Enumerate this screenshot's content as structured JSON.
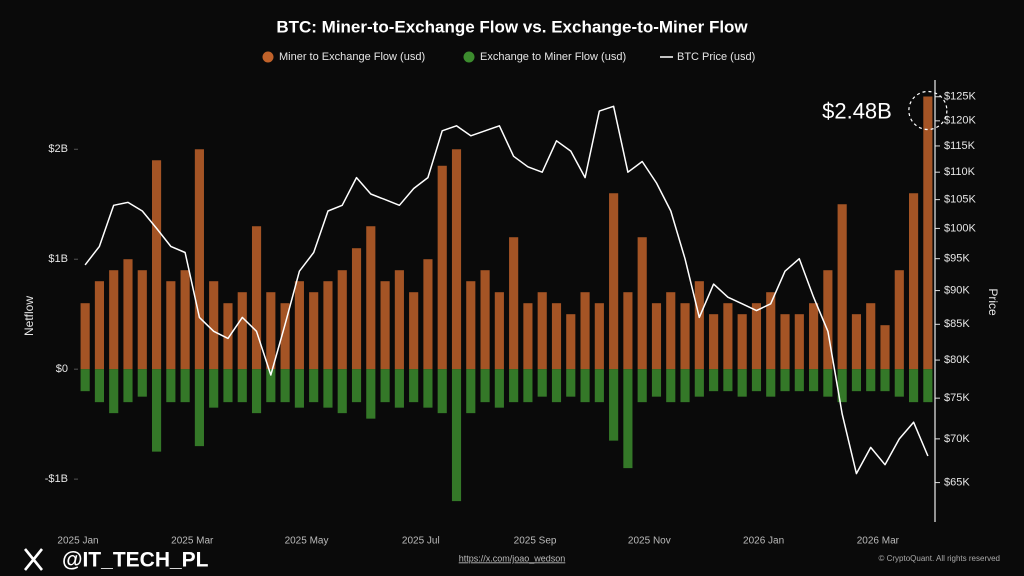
{
  "chart_data": {
    "type": "bar",
    "title": "BTC: Miner-to-Exchange Flow vs. Exchange-to-Miner Flow",
    "ylabel": "Netflow",
    "y2label": "Price",
    "categories": [
      "2025 Jan",
      null,
      null,
      null,
      null,
      null,
      null,
      null,
      "2025 Mar",
      null,
      null,
      null,
      null,
      null,
      null,
      null,
      "2025 May",
      null,
      null,
      null,
      null,
      null,
      null,
      null,
      "2025 Jul",
      null,
      null,
      null,
      null,
      null,
      null,
      null,
      "2025 Sep",
      null,
      null,
      null,
      null,
      null,
      null,
      null,
      "2025 Nov",
      null,
      null,
      null,
      null,
      null,
      null,
      null,
      "2026 Jan",
      null,
      null,
      null,
      null,
      null,
      null,
      null,
      "2026 Mar",
      null,
      null,
      null
    ],
    "series": [
      {
        "name": "Miner to Exchange Flow (usd)",
        "color": "#c0622a",
        "values": [
          0.6,
          0.8,
          0.9,
          1.0,
          0.9,
          1.9,
          0.8,
          0.9,
          2.0,
          0.8,
          0.6,
          0.7,
          1.3,
          0.7,
          0.6,
          0.8,
          0.7,
          0.8,
          0.9,
          1.1,
          1.3,
          0.8,
          0.9,
          0.7,
          1.0,
          1.85,
          2.0,
          0.8,
          0.9,
          0.7,
          1.2,
          0.6,
          0.7,
          0.6,
          0.5,
          0.7,
          0.6,
          1.6,
          0.7,
          1.2,
          0.6,
          0.7,
          0.6,
          0.8,
          0.5,
          0.6,
          0.5,
          0.6,
          0.7,
          0.5,
          0.5,
          0.6,
          0.9,
          1.5,
          0.5,
          0.6,
          0.4,
          0.9,
          1.6,
          2.48
        ],
        "value_labels": [
          null,
          null,
          null,
          null,
          null,
          null,
          null,
          null,
          null,
          null,
          null,
          null,
          null,
          null,
          null,
          null,
          null,
          null,
          null,
          null,
          null,
          null,
          null,
          null,
          null,
          null,
          null,
          null,
          null,
          null,
          null,
          null,
          null,
          null,
          null,
          null,
          null,
          null,
          null,
          null,
          null,
          null,
          null,
          null,
          null,
          null,
          null,
          null,
          null,
          null,
          null,
          null,
          null,
          null,
          null,
          null,
          null,
          null,
          null,
          "$2.48B"
        ]
      },
      {
        "name": "Exchange to Miner Flow (usd)",
        "color": "#3c8c2e",
        "values": [
          -0.2,
          -0.3,
          -0.4,
          -0.3,
          -0.25,
          -0.75,
          -0.3,
          -0.3,
          -0.7,
          -0.35,
          -0.3,
          -0.3,
          -0.4,
          -0.3,
          -0.3,
          -0.35,
          -0.3,
          -0.35,
          -0.4,
          -0.3,
          -0.45,
          -0.3,
          -0.35,
          -0.3,
          -0.35,
          -0.4,
          -1.2,
          -0.4,
          -0.3,
          -0.35,
          -0.3,
          -0.3,
          -0.25,
          -0.3,
          -0.25,
          -0.3,
          -0.3,
          -0.65,
          -0.9,
          -0.3,
          -0.25,
          -0.3,
          -0.3,
          -0.25,
          -0.2,
          -0.2,
          -0.25,
          -0.2,
          -0.25,
          -0.2,
          -0.2,
          -0.2,
          -0.25,
          -0.3,
          -0.2,
          -0.2,
          -0.2,
          -0.25,
          -0.3,
          -0.3
        ]
      },
      {
        "name": "BTC Price (usd)",
        "color": "#ffffff",
        "type": "line",
        "axis": "y2",
        "values": [
          94000,
          97000,
          104000,
          104500,
          103000,
          100000,
          97000,
          96000,
          86000,
          84000,
          83000,
          86000,
          84000,
          78000,
          85000,
          93000,
          96000,
          103000,
          104000,
          109000,
          106000,
          105000,
          104000,
          107000,
          109000,
          118000,
          119000,
          117000,
          118000,
          119000,
          113000,
          111000,
          110000,
          116000,
          114000,
          109000,
          122000,
          123000,
          110000,
          112000,
          108000,
          103000,
          95000,
          86000,
          91000,
          89000,
          88000,
          87000,
          88000,
          93000,
          95000,
          89000,
          84000,
          73000,
          66000,
          69000,
          67000,
          70000,
          72000,
          68000
        ]
      }
    ],
    "ylim": [
      -1.39,
      2.63
    ],
    "yticks": [
      {
        "value": -1,
        "label": "-$1B"
      },
      {
        "value": 0,
        "label": "$0"
      },
      {
        "value": 1,
        "label": "$1B"
      },
      {
        "value": 2,
        "label": "$2B"
      }
    ],
    "y2lim": [
      60800,
      128600
    ],
    "y2log": true,
    "y2ticks": [
      {
        "value": 65000,
        "label": "$65K"
      },
      {
        "value": 70000,
        "label": "$70K"
      },
      {
        "value": 75000,
        "label": "$75K"
      },
      {
        "value": 80000,
        "label": "$80K"
      },
      {
        "value": 85000,
        "label": "$85K"
      },
      {
        "value": 90000,
        "label": "$90K"
      },
      {
        "value": 95000,
        "label": "$95K"
      },
      {
        "value": 100000,
        "label": "$100K"
      },
      {
        "value": 105000,
        "label": "$105K"
      },
      {
        "value": 110000,
        "label": "$110K"
      },
      {
        "value": 115000,
        "label": "$115K"
      },
      {
        "value": 120000,
        "label": "$120K"
      },
      {
        "value": 125000,
        "label": "$125K"
      }
    ],
    "grid": false
  },
  "source": "https://x.com/joao_wedson",
  "copyright": "© CryptoQuant. All rights reserved",
  "watermark": "@IT_TECH_PL"
}
